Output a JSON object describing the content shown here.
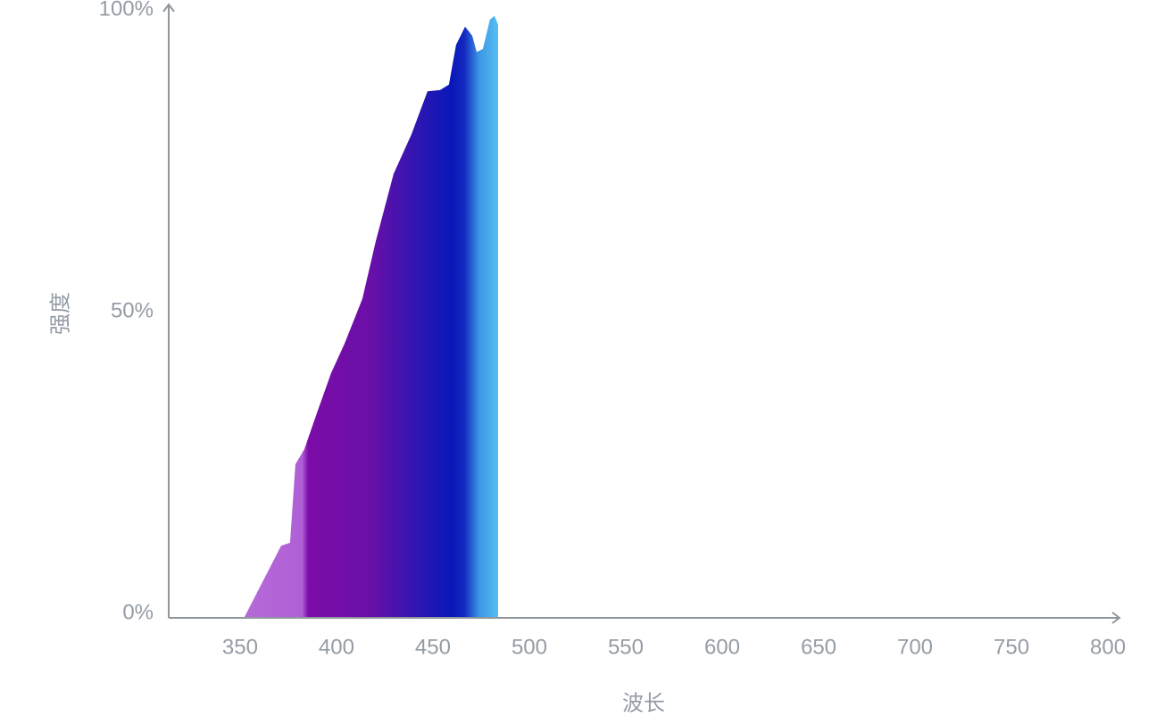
{
  "chart_data": {
    "type": "area",
    "x_label": "波长",
    "y_label": "强度",
    "x": [
      352.3,
      371.3,
      375.9,
      378.7,
      383.3,
      390.3,
      397.2,
      404.2,
      413.4,
      420.4,
      429.6,
      438.9,
      447.2,
      453.7,
      458.3,
      462.0,
      466.7,
      470.4,
      472.7,
      475.9,
      479.6,
      481.9,
      483.8,
      483.8
    ],
    "values": [
      0,
      11.8,
      12.3,
      25.3,
      27.8,
      34.2,
      40.4,
      45.3,
      52.7,
      62.3,
      73.4,
      80.0,
      87.1,
      87.3,
      88.2,
      94.8,
      97.8,
      96.3,
      93.6,
      94.1,
      99.0,
      99.6,
      98.1,
      0
    ],
    "xlim": [
      313,
      806
    ],
    "ylim": [
      0,
      100
    ],
    "xticks": [
      350,
      400,
      450,
      500,
      550,
      600,
      650,
      700,
      750,
      800
    ],
    "yticks": [
      {
        "value": 0,
        "label": "0%"
      },
      {
        "value": 50,
        "label": "50%"
      },
      {
        "value": 100,
        "label": "100%"
      }
    ],
    "grid": false
  }
}
